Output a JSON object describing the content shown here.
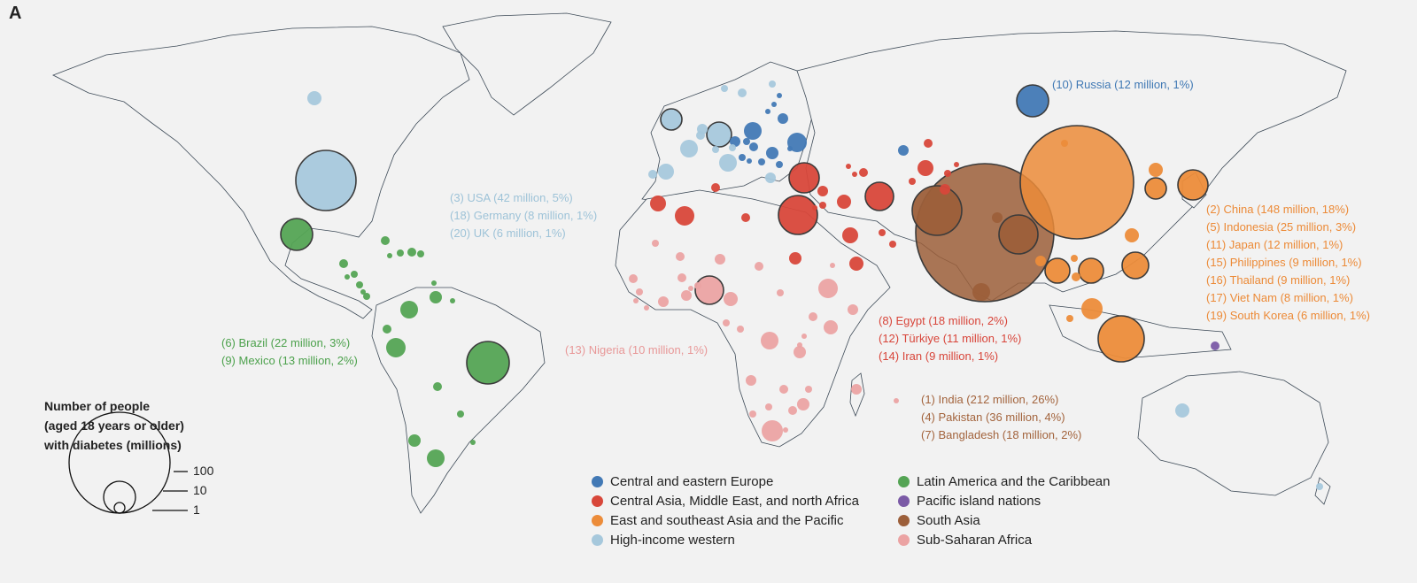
{
  "panel_label": "A",
  "colors": {
    "high_income_western": "#a6c8dc",
    "central_eastern_europe": "#4279b5",
    "central_asia_mena": "#d8473a",
    "east_se_asia_pacific": "#ec8c3a",
    "south_asia": "#9c5f3a",
    "sub_saharan_africa": "#eba3a3",
    "latin_america_caribbean": "#54a454",
    "pacific_island": "#7b5aa6"
  },
  "annotations": {
    "russia": "(10) Russia (12 million, 1%)",
    "high_income": [
      "(3) USA (42 million, 5%)",
      "(18) Germany (8 million, 1%)",
      "(20) UK (6 million, 1%)"
    ],
    "latin": [
      "(6) Brazil (22 million, 3%)",
      "(9) Mexico (13 million, 2%)"
    ],
    "nigeria": "(13) Nigeria (10 million, 1%)",
    "cme": [
      "(8) Egypt (18 million, 2%)",
      "(12) Türkiye  (11 million, 1%)",
      "(14) Iran (9 million, 1%)"
    ],
    "south_asia": [
      "(1) India (212 million, 26%)",
      "(4) Pakistan (36 million, 4%)",
      "(7) Bangladesh (18 million, 2%)"
    ],
    "east_asia": [
      "(2) China (148 million, 18%)",
      "(5) Indonesia (25 million, 3%)",
      "(11) Japan (12 million, 1%)",
      "(15) Philippines (9 million, 1%)",
      "(16) Thailand (9 million, 1%)",
      "(17) Viet Nam (8 million, 1%)",
      "(19) South Korea (6 million, 1%)"
    ]
  },
  "size_legend": {
    "title": [
      "Number of people",
      "(aged 18 years or older)",
      "with diabetes (millions)"
    ],
    "labels": [
      "100",
      "10",
      "1"
    ]
  },
  "legend": [
    {
      "label": "Central and eastern Europe",
      "color": "#4279b5"
    },
    {
      "label": "Central Asia, Middle East, and north Africa",
      "color": "#d8473a"
    },
    {
      "label": "East and southeast Asia and the Pacific",
      "color": "#ec8c3a"
    },
    {
      "label": "High-income western",
      "color": "#a6c8dc"
    },
    {
      "label": "Latin America and the Caribbean",
      "color": "#54a454"
    },
    {
      "label": "Pacific island nations",
      "color": "#7b5aa6"
    },
    {
      "label": "South Asia",
      "color": "#9c5f3a"
    },
    {
      "label": "Sub-Saharan Africa",
      "color": "#eba3a3"
    }
  ]
}
